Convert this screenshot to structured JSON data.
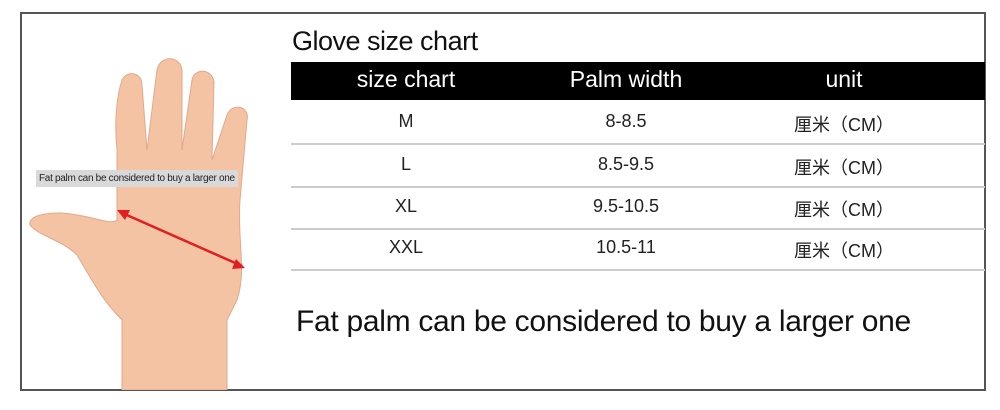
{
  "title": "Glove size chart",
  "hand_label": "Fat palm can be considered to buy a larger one",
  "table": {
    "headers": [
      "size chart",
      "Palm width",
      "unit"
    ],
    "rows": [
      [
        "M",
        "8-8.5",
        "厘米（CM）"
      ],
      [
        "L",
        "8.5-9.5",
        "厘米（CM）"
      ],
      [
        "XL",
        "9.5-10.5",
        "厘米（CM）"
      ],
      [
        "XXL",
        "10.5-11",
        "厘米（CM）"
      ]
    ]
  },
  "note": "Fat palm can be considered to buy a larger one",
  "colors": {
    "header_bg": "#000000",
    "arrow": "#e02020",
    "skin": "#f3c3a4"
  }
}
